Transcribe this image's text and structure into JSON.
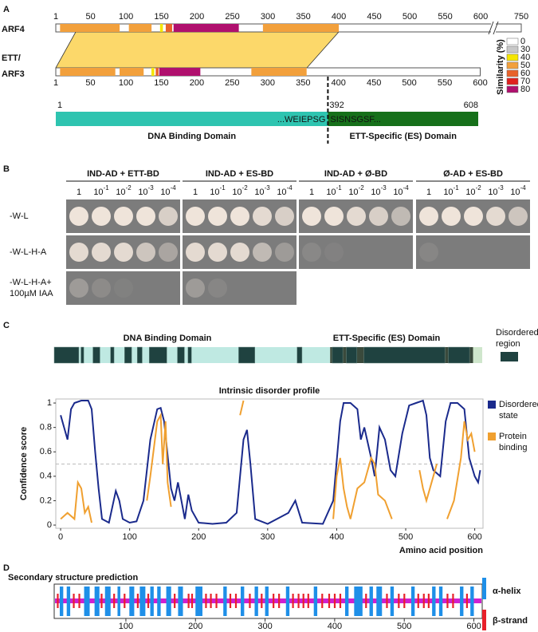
{
  "panel_a": {
    "label": "A",
    "arf4": {
      "label": "ARF4",
      "ticks": [
        1,
        50,
        100,
        150,
        200,
        250,
        300,
        350,
        400,
        450,
        500,
        550,
        600,
        750
      ],
      "segments": [
        {
          "start": 7,
          "end": 91,
          "sim": 50
        },
        {
          "start": 104,
          "end": 136,
          "sim": 50
        },
        {
          "start": 148,
          "end": 152,
          "sim": 40
        },
        {
          "start": 156,
          "end": 165,
          "sim": 60
        },
        {
          "start": 167,
          "end": 259,
          "sim": 80
        },
        {
          "start": 293,
          "end": 400,
          "sim": 50
        }
      ]
    },
    "ett": {
      "label_lines": [
        "ETT/",
        "ARF3"
      ],
      "ticks": [
        1,
        50,
        100,
        150,
        200,
        250,
        300,
        350,
        400,
        450,
        500,
        550,
        600
      ],
      "segments": [
        {
          "start": 7,
          "end": 85,
          "sim": 50
        },
        {
          "start": 91,
          "end": 125,
          "sim": 50
        },
        {
          "start": 136,
          "end": 140,
          "sim": 40
        },
        {
          "start": 142,
          "end": 146,
          "sim": 60
        },
        {
          "start": 147,
          "end": 205,
          "sim": 80
        },
        {
          "start": 277,
          "end": 355,
          "sim": 50
        }
      ]
    },
    "similarity": {
      "title": "Similarity (%)",
      "levels": [
        {
          "value": 0,
          "color": "#ffffff"
        },
        {
          "value": 30,
          "color": "#c8c8c8"
        },
        {
          "value": 40,
          "color": "#f5e600"
        },
        {
          "value": 50,
          "color": "#f2a03c"
        },
        {
          "value": 60,
          "color": "#e8622a"
        },
        {
          "value": 70,
          "color": "#e0201e"
        },
        {
          "value": 80,
          "color": "#b0106e"
        }
      ]
    },
    "domains": {
      "ticks": [
        1,
        392,
        608
      ],
      "dbd": {
        "name": "DNA Binding Domain",
        "start": 1,
        "end": 392,
        "seq": "...WEIEPSG",
        "color": "#2ec4b0"
      },
      "es": {
        "name": "ETT-Specific (ES) Domain",
        "start": 392,
        "end": 608,
        "seq": "SISNSGSF...",
        "color": "#16701a"
      }
    }
  },
  "panel_b": {
    "label": "B",
    "groups": [
      "IND-AD + ETT-BD",
      "IND-AD + ES-BD",
      "IND-AD + Ø-BD",
      "Ø-AD + ES-BD"
    ],
    "dilutions": [
      {
        "base": "1"
      },
      {
        "base": "10",
        "exp": "-1"
      },
      {
        "base": "10",
        "exp": "-2"
      },
      {
        "base": "10",
        "exp": "-3"
      },
      {
        "base": "10",
        "exp": "-4"
      }
    ],
    "media": [
      [
        "-W-L"
      ],
      [
        "-W-L-H-A"
      ],
      [
        "-W-L-H-A+",
        "100µM IAA"
      ]
    ]
  },
  "panel_c": {
    "label": "C",
    "dbd": "DNA Binding Domain",
    "es": "ETT-Specific (ES) Domain",
    "legend": "Disordered region",
    "regions": [
      [
        0,
        35
      ],
      [
        38,
        42
      ],
      [
        55,
        65
      ],
      [
        80,
        85
      ],
      [
        100,
        110
      ],
      [
        118,
        125
      ],
      [
        135,
        160
      ],
      [
        175,
        185
      ],
      [
        190,
        195
      ],
      [
        262,
        285
      ],
      [
        345,
        352
      ],
      [
        395,
        410
      ],
      [
        415,
        430
      ],
      [
        440,
        555
      ],
      [
        560,
        590
      ]
    ]
  },
  "chart_data": {
    "type": "line",
    "title": "Intrinsic disorder profile",
    "xlabel": "Amino acid position",
    "ylabel": "Confidence score",
    "xlim": [
      -7,
      612
    ],
    "ylim": [
      -0.026,
      1.033
    ],
    "xticks": [
      0,
      100,
      200,
      300,
      400,
      500,
      600
    ],
    "yticks": [
      0,
      0.2,
      0.4,
      0.6,
      0.8,
      1
    ],
    "hline": 0.5,
    "series": [
      {
        "name": "Disordered state",
        "color": "#1a2a8c",
        "x": [
          0,
          5,
          10,
          15,
          20,
          30,
          40,
          45,
          50,
          55,
          60,
          70,
          75,
          80,
          85,
          90,
          100,
          110,
          120,
          130,
          140,
          145,
          150,
          160,
          165,
          170,
          175,
          180,
          185,
          190,
          200,
          220,
          240,
          255,
          265,
          270,
          275,
          282,
          300,
          330,
          340,
          350,
          380,
          395,
          405,
          410,
          420,
          430,
          435,
          440,
          450,
          455,
          462,
          470,
          478,
          485,
          495,
          505,
          515,
          525,
          530,
          535,
          540,
          550,
          558,
          565,
          575,
          585,
          592,
          600,
          605,
          608
        ],
        "values": [
          0.9,
          0.8,
          0.7,
          0.95,
          1.0,
          1.02,
          1.02,
          0.95,
          0.6,
          0.3,
          0.05,
          0.02,
          0.15,
          0.28,
          0.2,
          0.05,
          0.02,
          0.03,
          0.2,
          0.7,
          0.95,
          0.96,
          0.85,
          0.3,
          0.2,
          0.35,
          0.2,
          0.05,
          0.25,
          0.12,
          0.02,
          0.01,
          0.02,
          0.1,
          0.7,
          0.78,
          0.5,
          0.05,
          0.01,
          0.1,
          0.2,
          0.02,
          0.01,
          0.2,
          0.85,
          1.0,
          1.0,
          0.95,
          0.7,
          0.8,
          0.55,
          0.4,
          0.8,
          0.7,
          0.45,
          0.4,
          0.75,
          0.98,
          1.0,
          1.02,
          0.9,
          0.55,
          0.45,
          0.4,
          0.85,
          1.0,
          1.0,
          0.95,
          0.55,
          0.4,
          0.35,
          0.45
        ]
      },
      {
        "name": "Protein binding",
        "color": "#f0a030",
        "x": [
          0,
          10,
          20,
          25,
          30,
          35,
          40,
          45,
          80,
          125,
          130,
          140,
          145,
          148,
          152,
          155,
          160,
          200,
          260,
          265,
          300,
          395,
          400,
          405,
          410,
          415,
          420,
          430,
          440,
          450,
          455,
          460,
          470,
          480,
          500,
          520,
          525,
          530,
          540,
          545,
          552,
          560,
          570,
          580,
          585,
          590,
          595,
          600
        ],
        "values": [
          0.05,
          0.1,
          0.05,
          0.35,
          0.3,
          0.1,
          0.15,
          0.02,
          null,
          0.2,
          0.4,
          0.85,
          0.9,
          0.5,
          0.85,
          0.35,
          0.15,
          null,
          0.9,
          1.02,
          null,
          0.05,
          0.4,
          0.55,
          0.3,
          0.15,
          0.05,
          0.3,
          0.35,
          0.55,
          0.5,
          0.25,
          0.2,
          0.05,
          null,
          0.45,
          0.3,
          0.2,
          0.4,
          0.5,
          null,
          0.05,
          0.2,
          0.55,
          0.85,
          0.7,
          0.75,
          0.6
        ]
      }
    ]
  },
  "panel_d": {
    "label": "D",
    "title": "Secondary structure prediction",
    "xlim": [
      -3,
      612
    ],
    "xticks": [
      100,
      200,
      300,
      400,
      500,
      600
    ],
    "coil_color": "#d020d0",
    "helix": {
      "name": "α-helix",
      "color": "#1e8fe8",
      "ranges": [
        [
          5,
          10
        ],
        [
          15,
          20
        ],
        [
          40,
          48
        ],
        [
          55,
          62
        ],
        [
          70,
          78
        ],
        [
          88,
          92
        ],
        [
          105,
          112
        ],
        [
          120,
          128
        ],
        [
          135,
          140
        ],
        [
          145,
          150
        ],
        [
          158,
          165
        ],
        [
          175,
          182
        ],
        [
          200,
          210
        ],
        [
          240,
          245
        ],
        [
          265,
          270
        ],
        [
          285,
          290
        ],
        [
          300,
          305
        ],
        [
          330,
          335
        ],
        [
          370,
          375
        ],
        [
          415,
          420
        ],
        [
          428,
          440
        ],
        [
          450,
          455
        ],
        [
          460,
          468
        ],
        [
          480,
          485
        ],
        [
          510,
          515
        ],
        [
          540,
          545
        ],
        [
          550,
          555
        ],
        [
          580,
          585
        ],
        [
          595,
          600
        ]
      ]
    },
    "strand": {
      "name": "β-strand",
      "color": "#e8202a",
      "positions": [
        2,
        25,
        33,
        65,
        83,
        98,
        117,
        132,
        170,
        190,
        195,
        215,
        222,
        230,
        250,
        258,
        278,
        295,
        312,
        320,
        340,
        348,
        355,
        362,
        382,
        392,
        400,
        408,
        445,
        475,
        492,
        500,
        520,
        528,
        535,
        562,
        570,
        590
      ]
    }
  }
}
